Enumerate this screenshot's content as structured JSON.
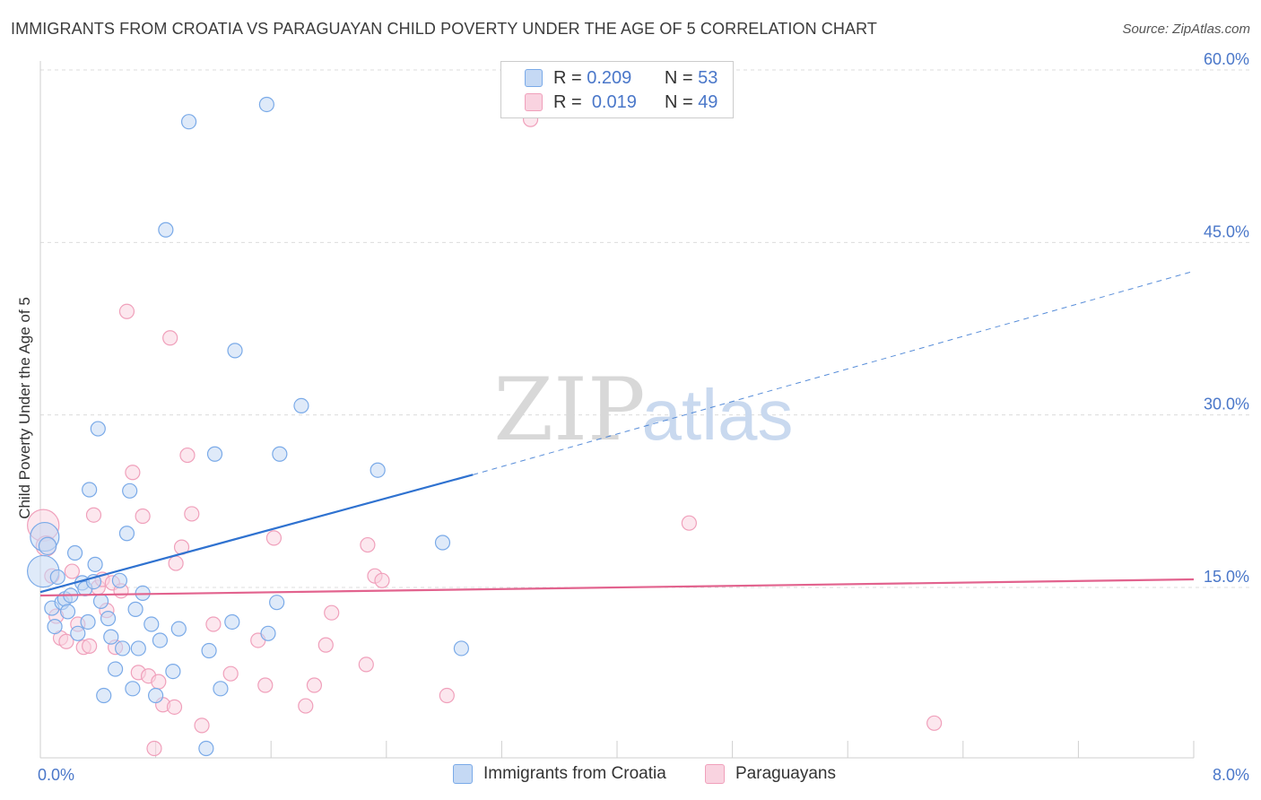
{
  "title": "IMMIGRANTS FROM CROATIA VS PARAGUAYAN CHILD POVERTY UNDER THE AGE OF 5 CORRELATION CHART",
  "source": "Source: ZipAtlas.com",
  "watermark": {
    "zip": "ZIP",
    "atlas": "atlas"
  },
  "colors": {
    "blue": "#7aaae8",
    "blue_fill": "#c5d9f4",
    "blue_line": "#2f72d0",
    "pink": "#f0a0bb",
    "pink_fill": "#f9d3e0",
    "pink_line": "#e2638e",
    "tick_text": "#4a77c9"
  },
  "legend": {
    "series1": {
      "r_label": "R =",
      "r_value": "0.209",
      "n_label": "N =",
      "n_value": "53"
    },
    "series2": {
      "r_label": "R =",
      "r_value": "0.019",
      "n_label": "N =",
      "n_value": "49"
    }
  },
  "bottom_legend": {
    "series1": "Immigrants from Croatia",
    "series2": "Paraguayans"
  },
  "chart_data": {
    "type": "scatter",
    "title": "IMMIGRANTS FROM CROATIA VS PARAGUAYAN CHILD POVERTY UNDER THE AGE OF 5 CORRELATION CHART",
    "xlabel": "",
    "ylabel": "Child Poverty Under the Age of 5",
    "xlim": [
      0,
      8
    ],
    "ylim": [
      0,
      63
    ],
    "x_tick_labels": [
      "0.0%",
      "8.0%"
    ],
    "y_ticks": [
      15,
      30,
      45,
      60
    ],
    "y_tick_labels": [
      "15.0%",
      "30.0%",
      "45.0%",
      "60.0%"
    ],
    "series": [
      {
        "name": "Immigrants from Croatia",
        "trend": {
          "x0": 0,
          "y0": 14.6,
          "x1": 3.0,
          "y1": 24.8,
          "x_dash_end": 8.0,
          "y_dash_end": 42.5
        },
        "points": [
          [
            0.02,
            16.4,
            2.2
          ],
          [
            0.03,
            19.4,
            2.0
          ],
          [
            0.05,
            18.6,
            1.2
          ],
          [
            0.08,
            13.2,
            1.0
          ],
          [
            0.1,
            11.6,
            1.0
          ],
          [
            0.12,
            15.9,
            1.0
          ],
          [
            0.15,
            13.7,
            1.0
          ],
          [
            0.17,
            14.0,
            1.0
          ],
          [
            0.19,
            12.9,
            1.0
          ],
          [
            0.21,
            14.3,
            1.0
          ],
          [
            0.24,
            18.0,
            1.0
          ],
          [
            0.26,
            11.0,
            1.0
          ],
          [
            0.29,
            15.4,
            1.0
          ],
          [
            0.31,
            14.9,
            1.0
          ],
          [
            0.33,
            12.0,
            1.0
          ],
          [
            0.34,
            23.5,
            1.0
          ],
          [
            0.37,
            15.5,
            1.0
          ],
          [
            0.38,
            17.0,
            1.0
          ],
          [
            0.4,
            28.8,
            1.0
          ],
          [
            0.42,
            13.8,
            1.0
          ],
          [
            0.44,
            5.6,
            1.0
          ],
          [
            0.47,
            12.3,
            1.0
          ],
          [
            0.49,
            10.7,
            1.0
          ],
          [
            0.52,
            7.9,
            1.0
          ],
          [
            0.55,
            15.6,
            1.0
          ],
          [
            0.57,
            9.7,
            1.0
          ],
          [
            0.6,
            19.7,
            1.0
          ],
          [
            0.62,
            23.4,
            1.0
          ],
          [
            0.64,
            6.2,
            1.0
          ],
          [
            0.66,
            13.1,
            1.0
          ],
          [
            0.68,
            9.7,
            1.0
          ],
          [
            0.71,
            14.5,
            1.0
          ],
          [
            0.77,
            11.8,
            1.0
          ],
          [
            0.8,
            5.6,
            1.0
          ],
          [
            0.83,
            10.4,
            1.0
          ],
          [
            0.87,
            46.1,
            1.0
          ],
          [
            0.92,
            7.7,
            1.0
          ],
          [
            0.96,
            11.4,
            1.0
          ],
          [
            1.03,
            55.5,
            1.0
          ],
          [
            1.15,
            1.0,
            1.0
          ],
          [
            1.17,
            9.5,
            1.0
          ],
          [
            1.21,
            26.6,
            1.0
          ],
          [
            1.25,
            6.2,
            1.0
          ],
          [
            1.33,
            12.0,
            1.0
          ],
          [
            1.35,
            35.6,
            1.0
          ],
          [
            1.57,
            57.0,
            1.0
          ],
          [
            1.58,
            11.0,
            1.0
          ],
          [
            1.64,
            13.7,
            1.0
          ],
          [
            1.66,
            26.6,
            1.0
          ],
          [
            1.81,
            30.8,
            1.0
          ],
          [
            2.34,
            25.2,
            1.0
          ],
          [
            2.79,
            18.9,
            1.0
          ],
          [
            2.92,
            9.7,
            1.0
          ]
        ]
      },
      {
        "name": "Paraguayans",
        "trend": {
          "x0": 0,
          "y0": 14.3,
          "x1": 8.0,
          "y1": 15.7
        },
        "points": [
          [
            0.02,
            20.4,
            2.2
          ],
          [
            0.04,
            18.6,
            1.4
          ],
          [
            0.08,
            16.0,
            1.0
          ],
          [
            0.11,
            12.5,
            1.0
          ],
          [
            0.14,
            10.6,
            1.0
          ],
          [
            0.18,
            10.3,
            1.0
          ],
          [
            0.22,
            16.4,
            1.0
          ],
          [
            0.26,
            11.8,
            1.0
          ],
          [
            0.3,
            9.8,
            1.0
          ],
          [
            0.34,
            9.9,
            1.0
          ],
          [
            0.37,
            21.3,
            1.0
          ],
          [
            0.4,
            15.0,
            1.0
          ],
          [
            0.43,
            15.7,
            1.0
          ],
          [
            0.46,
            13.0,
            1.0
          ],
          [
            0.5,
            15.4,
            1.0
          ],
          [
            0.52,
            9.8,
            1.0
          ],
          [
            0.56,
            14.7,
            1.0
          ],
          [
            0.6,
            39.0,
            1.0
          ],
          [
            0.64,
            25.0,
            1.0
          ],
          [
            0.68,
            7.6,
            1.0
          ],
          [
            0.71,
            21.2,
            1.0
          ],
          [
            0.75,
            7.3,
            1.0
          ],
          [
            0.79,
            1.0,
            1.0
          ],
          [
            0.82,
            6.8,
            1.0
          ],
          [
            0.85,
            4.8,
            1.0
          ],
          [
            0.9,
            36.7,
            1.0
          ],
          [
            0.93,
            4.6,
            1.0
          ],
          [
            0.94,
            17.1,
            1.0
          ],
          [
            0.98,
            18.5,
            1.0
          ],
          [
            1.02,
            26.5,
            1.0
          ],
          [
            1.05,
            21.4,
            1.0
          ],
          [
            1.12,
            3.0,
            1.0
          ],
          [
            1.2,
            11.8,
            1.0
          ],
          [
            1.32,
            7.5,
            1.0
          ],
          [
            1.51,
            10.4,
            1.0
          ],
          [
            1.56,
            6.5,
            1.0
          ],
          [
            1.62,
            19.3,
            1.0
          ],
          [
            1.84,
            4.7,
            1.0
          ],
          [
            1.9,
            6.5,
            1.0
          ],
          [
            1.98,
            10.0,
            1.0
          ],
          [
            2.02,
            12.8,
            1.0
          ],
          [
            2.26,
            8.3,
            1.0
          ],
          [
            2.27,
            18.7,
            1.0
          ],
          [
            2.32,
            16.0,
            1.0
          ],
          [
            2.37,
            15.6,
            1.0
          ],
          [
            2.82,
            5.6,
            1.0
          ],
          [
            3.4,
            55.7,
            1.0
          ],
          [
            4.5,
            20.6,
            1.0
          ],
          [
            6.2,
            3.2,
            1.0
          ]
        ]
      }
    ]
  }
}
